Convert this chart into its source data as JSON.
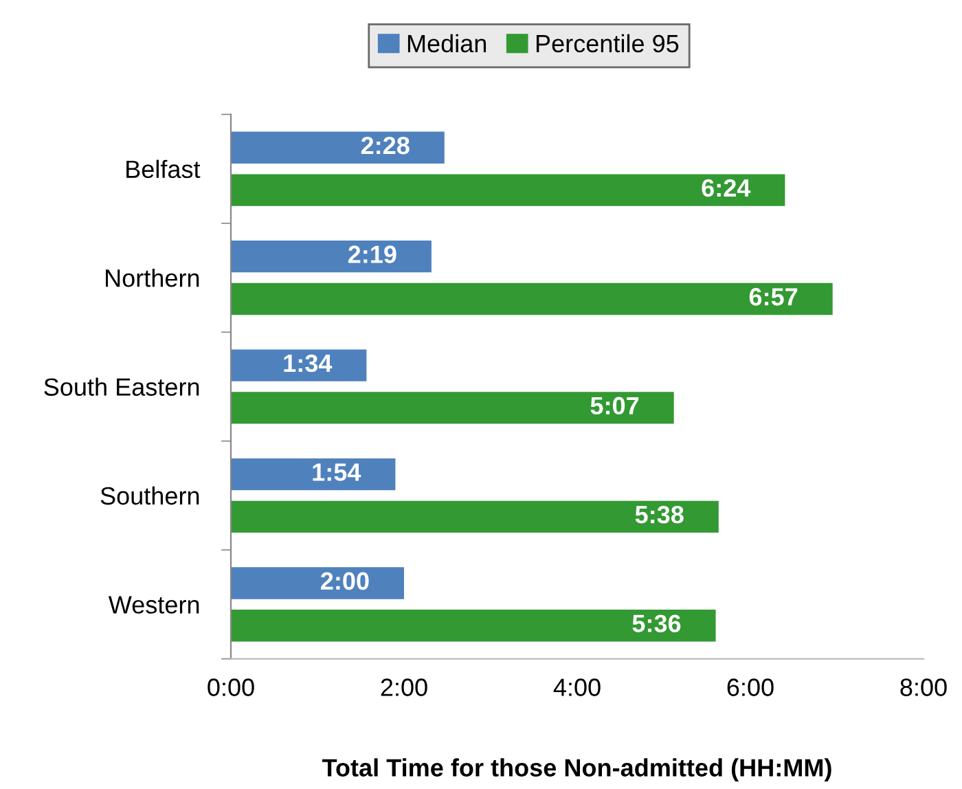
{
  "chart_data": {
    "type": "bar",
    "orientation": "horizontal",
    "xlabel": "Total Time for those Non-admitted (HH:MM)",
    "categories": [
      "Belfast",
      "Northern",
      "South Eastern",
      "Southern",
      "Western"
    ],
    "series": [
      {
        "name": "Median",
        "color": "#4f81bd",
        "values": [
          2.4667,
          2.3167,
          1.5667,
          1.9,
          2.0
        ],
        "value_labels": [
          "2:28",
          "2:19",
          "1:34",
          "1:54",
          "2:00"
        ]
      },
      {
        "name": "Percentile 95",
        "color": "#339933",
        "values": [
          6.4,
          6.95,
          5.1167,
          5.6333,
          5.6
        ],
        "value_labels": [
          "6:24",
          "6:57",
          "5:07",
          "5:38",
          "5:36"
        ]
      }
    ],
    "xlim": [
      0,
      8
    ],
    "xticks": [
      {
        "value": 0,
        "label": "0:00"
      },
      {
        "value": 2,
        "label": "2:00"
      },
      {
        "value": 4,
        "label": "4:00"
      },
      {
        "value": 6,
        "label": "6:00"
      },
      {
        "value": 8,
        "label": "8:00"
      }
    ],
    "grid": false,
    "legend": "top"
  }
}
